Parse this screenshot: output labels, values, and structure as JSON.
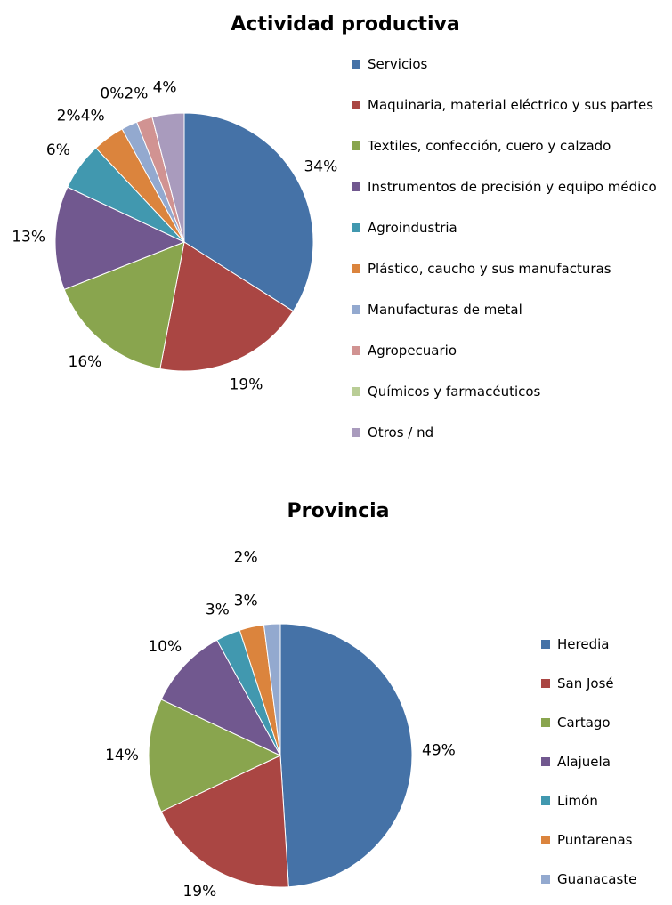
{
  "chart_data": [
    {
      "type": "pie",
      "title": "Actividad productiva",
      "categories": [
        "Servicios",
        "Maquinaria, material eléctrico y sus partes",
        "Textiles, confección, cuero y calzado",
        "Instrumentos de precisión y equipo médico",
        "Agroindustria",
        "Plástico, caucho y sus manufacturas",
        "Manufacturas de metal",
        "Agropecuario",
        "Químicos y farmacéuticos",
        "Otros / nd"
      ],
      "values": [
        34,
        19,
        16,
        13,
        6,
        4,
        2,
        2,
        0,
        4
      ],
      "value_labels": [
        "34%",
        "19%",
        "16%",
        "13%",
        "6%",
        "4%",
        "2%",
        "2%",
        "0%",
        "4%"
      ],
      "colors": [
        "#4572A7",
        "#AA4643",
        "#89A54E",
        "#71588F",
        "#4198AF",
        "#DB843D",
        "#93A9CF",
        "#D19392",
        "#B9CD96",
        "#A99BBD"
      ],
      "legend": "right"
    },
    {
      "type": "pie",
      "title": "Provincia",
      "categories": [
        "Heredia",
        "San José",
        "Cartago",
        "Alajuela",
        "Limón",
        "Puntarenas",
        "Guanacaste"
      ],
      "values": [
        49,
        19,
        14,
        10,
        3,
        3,
        2
      ],
      "value_labels": [
        "49%",
        "19%",
        "14%",
        "10%",
        "3%",
        "3%",
        "2%"
      ],
      "colors": [
        "#4572A7",
        "#AA4643",
        "#89A54E",
        "#71588F",
        "#4198AF",
        "#DB843D",
        "#93A9CF"
      ],
      "legend": "right"
    }
  ]
}
